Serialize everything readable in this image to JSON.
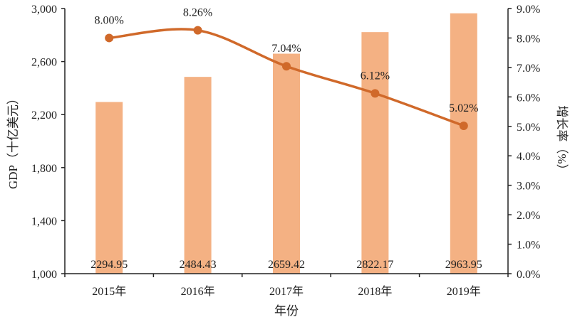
{
  "chart_data": {
    "type": "bar+line",
    "categories": [
      "2015年",
      "2016年",
      "2017年",
      "2018年",
      "2019年"
    ],
    "xlabel": "年份",
    "ylabel": "GDP（十亿美元）",
    "y2label": "增长率（%）",
    "ylim": [
      1000,
      3000
    ],
    "yticks": [
      1000,
      1400,
      1800,
      2200,
      2600,
      3000
    ],
    "ytick_labels": [
      "1,000",
      "1,400",
      "1,800",
      "2,200",
      "2,600",
      "3,000"
    ],
    "y2lim": [
      0,
      9
    ],
    "y2ticks": [
      0,
      1,
      2,
      3,
      4,
      5,
      6,
      7,
      8,
      9
    ],
    "y2tick_labels": [
      "0.0%",
      "1.0%",
      "2.0%",
      "3.0%",
      "4.0%",
      "5.0%",
      "6.0%",
      "7.0%",
      "8.0%",
      "9.0%"
    ],
    "series": [
      {
        "name": "GDP",
        "type": "bar",
        "axis": "left",
        "values": [
          2294.95,
          2484.43,
          2659.42,
          2822.17,
          2963.95
        ],
        "labels": [
          "2294.95",
          "2484.43",
          "2659.42",
          "2822.17",
          "2963.95"
        ],
        "color": "#f4b183"
      },
      {
        "name": "增长率",
        "type": "line",
        "axis": "right",
        "values": [
          8.0,
          8.26,
          7.04,
          6.12,
          5.02
        ],
        "labels": [
          "8.00%",
          "8.26%",
          "7.04%",
          "6.12%",
          "5.02%"
        ],
        "color": "#d0692a"
      }
    ],
    "grid": false,
    "legend": "none"
  }
}
